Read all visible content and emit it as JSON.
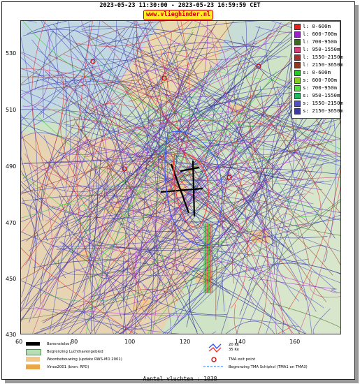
{
  "header": {
    "title": "2023-05-23 11:30:00 - 2023-05-23 16:59:59 CET",
    "brand": "www.vlieghinder.nl"
  },
  "axes": {
    "y_ticks": [
      "530",
      "510",
      "490",
      "470",
      "450",
      "430"
    ],
    "x_ticks": [
      "60",
      "80",
      "100",
      "120",
      "140",
      "160"
    ]
  },
  "legend": {
    "items": [
      {
        "label": "l: 0-600m",
        "color": "#e8211e"
      },
      {
        "label": "l: 600-700m",
        "color": "#9b1fc8"
      },
      {
        "label": "l: 700-950m",
        "color": "#3a6b1e"
      },
      {
        "label": "l: 950-1550m",
        "color": "#d0407a"
      },
      {
        "label": "l: 1550-2150m",
        "color": "#a0302a"
      },
      {
        "label": "l: 2150-3650m",
        "color": "#8a3a20"
      },
      {
        "label": "s: 0-600m",
        "color": "#22cc22"
      },
      {
        "label": "s: 600-700m",
        "color": "#88cc22"
      },
      {
        "label": "s: 700-950m",
        "color": "#55dd44"
      },
      {
        "label": "s: 950-1550m",
        "color": "#22b866"
      },
      {
        "label": "s: 1550-2150m",
        "color": "#5050c8"
      },
      {
        "label": "s: 2150-3650m",
        "color": "#3a3aa0"
      }
    ]
  },
  "bottom_legend": {
    "banenstelsel": "Banenstelsel",
    "luchthaven": "Begrenzing Luchthavengebied",
    "woonbebouwing": "Woonbebouwing (update RWS-MD 2001)",
    "vinex": "Vinex2001 (bron: RPD)",
    "ke20": "20 Ke",
    "ke35": "35 Ke",
    "tma_exit": "TMA exit point",
    "tma_border": "Begrenzing TMA Schiphol  (TMA1 en TMA3)"
  },
  "footer": {
    "count": "Aantal vluchten : 1038"
  }
}
